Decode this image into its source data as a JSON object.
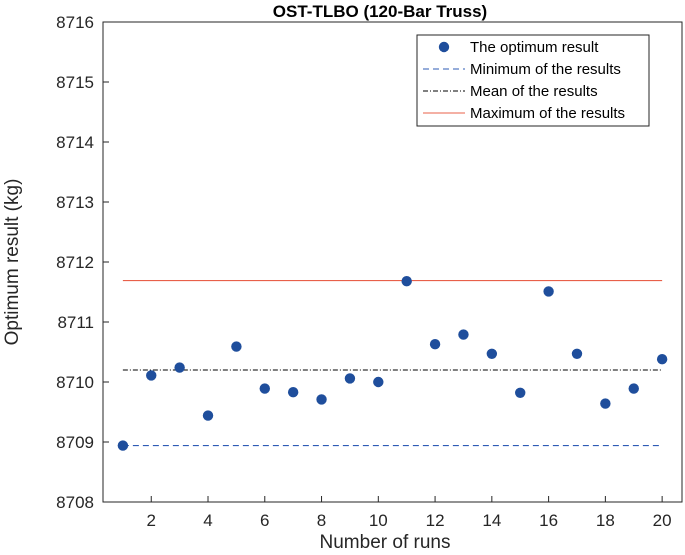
{
  "chart_data": {
    "type": "scatter",
    "title": "OST-TLBO (120-Bar Truss)",
    "xlabel": "Number of runs",
    "ylabel": "Optimum result (kg)",
    "xlim": [
      0.3,
      20.7
    ],
    "ylim": [
      8708,
      8716
    ],
    "xticks": [
      2,
      4,
      6,
      8,
      10,
      12,
      14,
      16,
      18,
      20
    ],
    "yticks": [
      8708,
      8709,
      8710,
      8711,
      8712,
      8713,
      8714,
      8715,
      8716
    ],
    "grid": false,
    "legend_position": "top-right",
    "series": [
      {
        "name": "The optimum result",
        "kind": "markers",
        "color": "#1f4e9c",
        "x": [
          1,
          2,
          3,
          4,
          5,
          6,
          7,
          8,
          9,
          10,
          11,
          12,
          13,
          14,
          15,
          16,
          17,
          18,
          19,
          20
        ],
        "y": [
          8708.94,
          8710.11,
          8710.24,
          8709.44,
          8710.59,
          8709.89,
          8709.83,
          8709.71,
          8710.06,
          8710.0,
          8711.68,
          8710.63,
          8710.79,
          8710.47,
          8709.82,
          8711.51,
          8710.47,
          8709.64,
          8709.89,
          8710.38
        ]
      },
      {
        "name": "Minimum of the results",
        "kind": "hline",
        "color": "#2e5bb5",
        "style": "dashed",
        "value": 8708.94
      },
      {
        "name": "Mean of the results",
        "kind": "hline",
        "color": "#000000",
        "style": "dash-dot",
        "value": 8710.2
      },
      {
        "name": "Maximum of the results",
        "kind": "hline",
        "color": "#e8604a",
        "style": "solid",
        "value": 8711.69
      }
    ]
  }
}
